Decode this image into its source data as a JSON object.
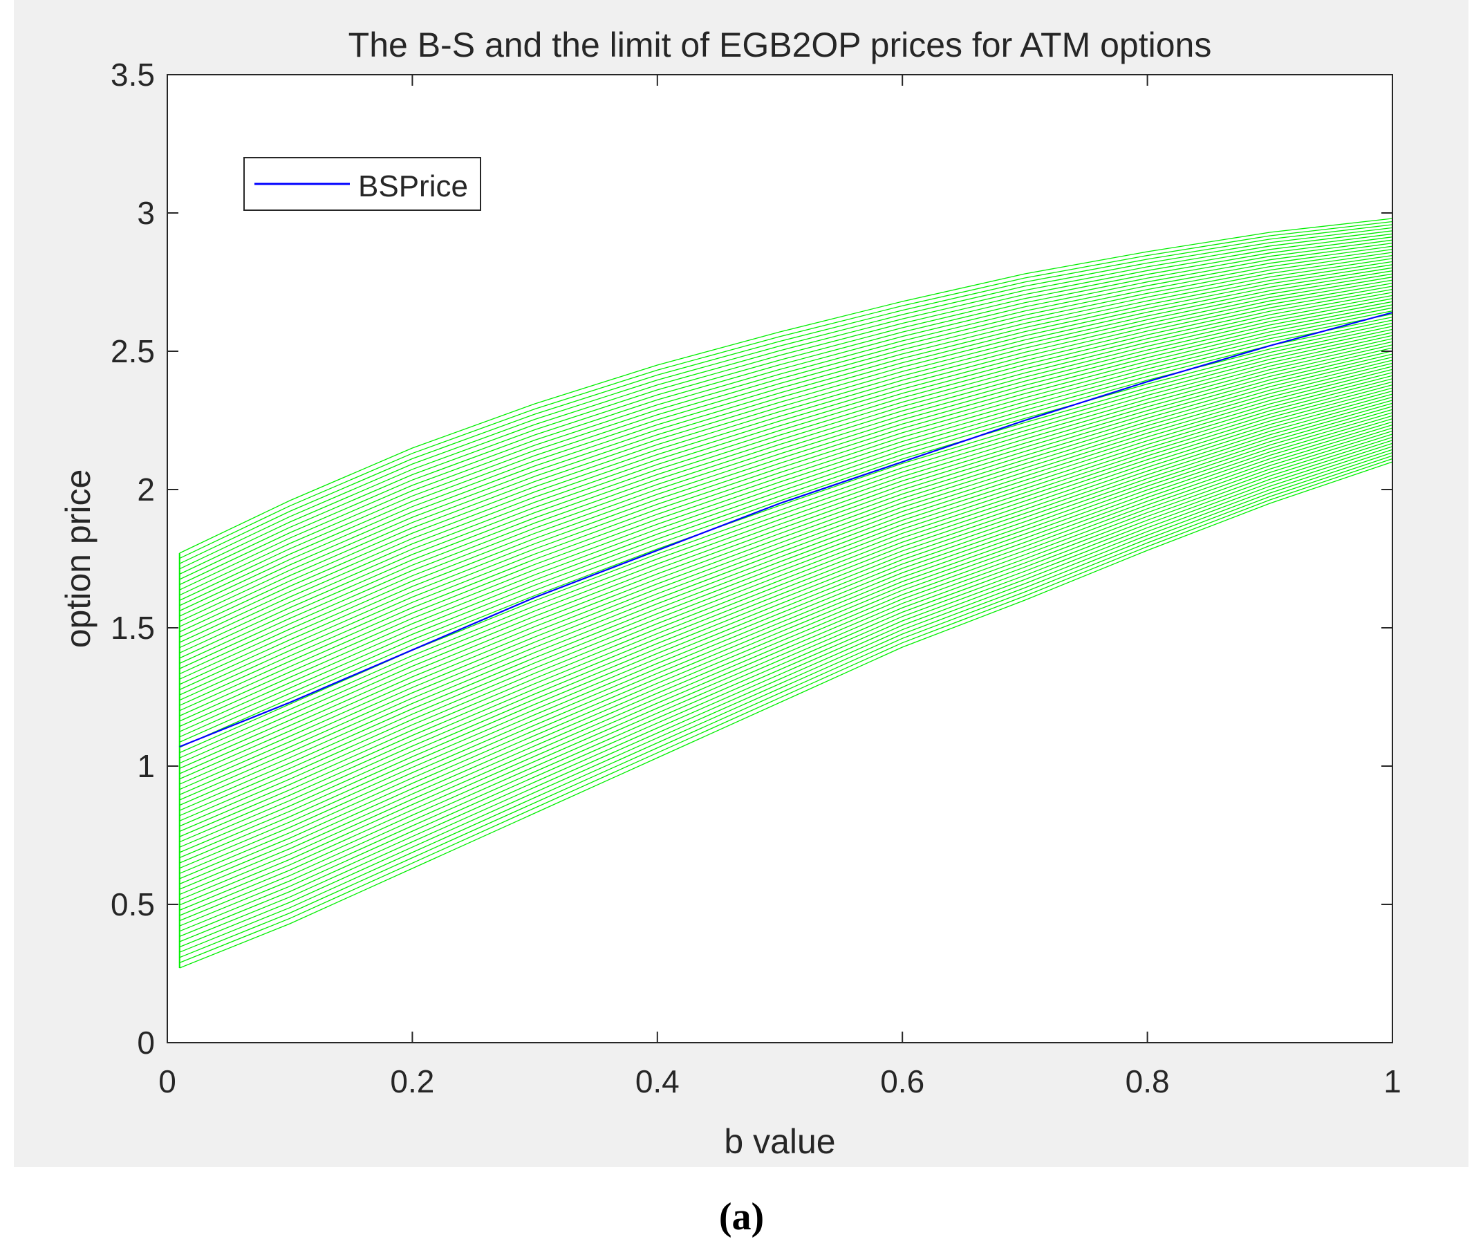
{
  "caption": "(a)",
  "chart_data": {
    "type": "line",
    "title": "The B-S and the limit of EGB2OP prices for ATM options",
    "xlabel": "b value",
    "ylabel": "option price",
    "xlim": [
      0,
      1
    ],
    "ylim": [
      0,
      3.5
    ],
    "xticks": [
      0,
      0.2,
      0.4,
      0.6,
      0.8,
      1
    ],
    "xtick_labels": [
      "0",
      "0.2",
      "0.4",
      "0.6",
      "0.8",
      "1"
    ],
    "yticks": [
      0,
      0.5,
      1,
      1.5,
      2,
      2.5,
      3,
      3.5
    ],
    "ytick_labels": [
      "0",
      "0.5",
      "1",
      "1.5",
      "2",
      "2.5",
      "3",
      "3.5"
    ],
    "grid": false,
    "legend": {
      "position": "top-left",
      "entries": [
        "BSPrice"
      ]
    },
    "band": {
      "color": "#00ee00",
      "line_count": 80,
      "x": [
        0.01,
        0.1,
        0.2,
        0.3,
        0.4,
        0.5,
        0.6,
        0.7,
        0.8,
        0.9,
        1.0
      ],
      "upper": [
        1.77,
        1.96,
        2.15,
        2.31,
        2.45,
        2.57,
        2.68,
        2.78,
        2.86,
        2.93,
        2.98
      ],
      "lower": [
        0.27,
        0.43,
        0.63,
        0.83,
        1.03,
        1.23,
        1.43,
        1.6,
        1.78,
        1.95,
        2.1
      ]
    },
    "series": [
      {
        "name": "BSPrice",
        "color": "#0000ff",
        "x": [
          0.01,
          0.1,
          0.2,
          0.3,
          0.4,
          0.5,
          0.6,
          0.7,
          0.8,
          0.9,
          1.0
        ],
        "y": [
          1.07,
          1.23,
          1.42,
          1.61,
          1.78,
          1.95,
          2.1,
          2.25,
          2.39,
          2.52,
          2.64
        ]
      }
    ]
  }
}
